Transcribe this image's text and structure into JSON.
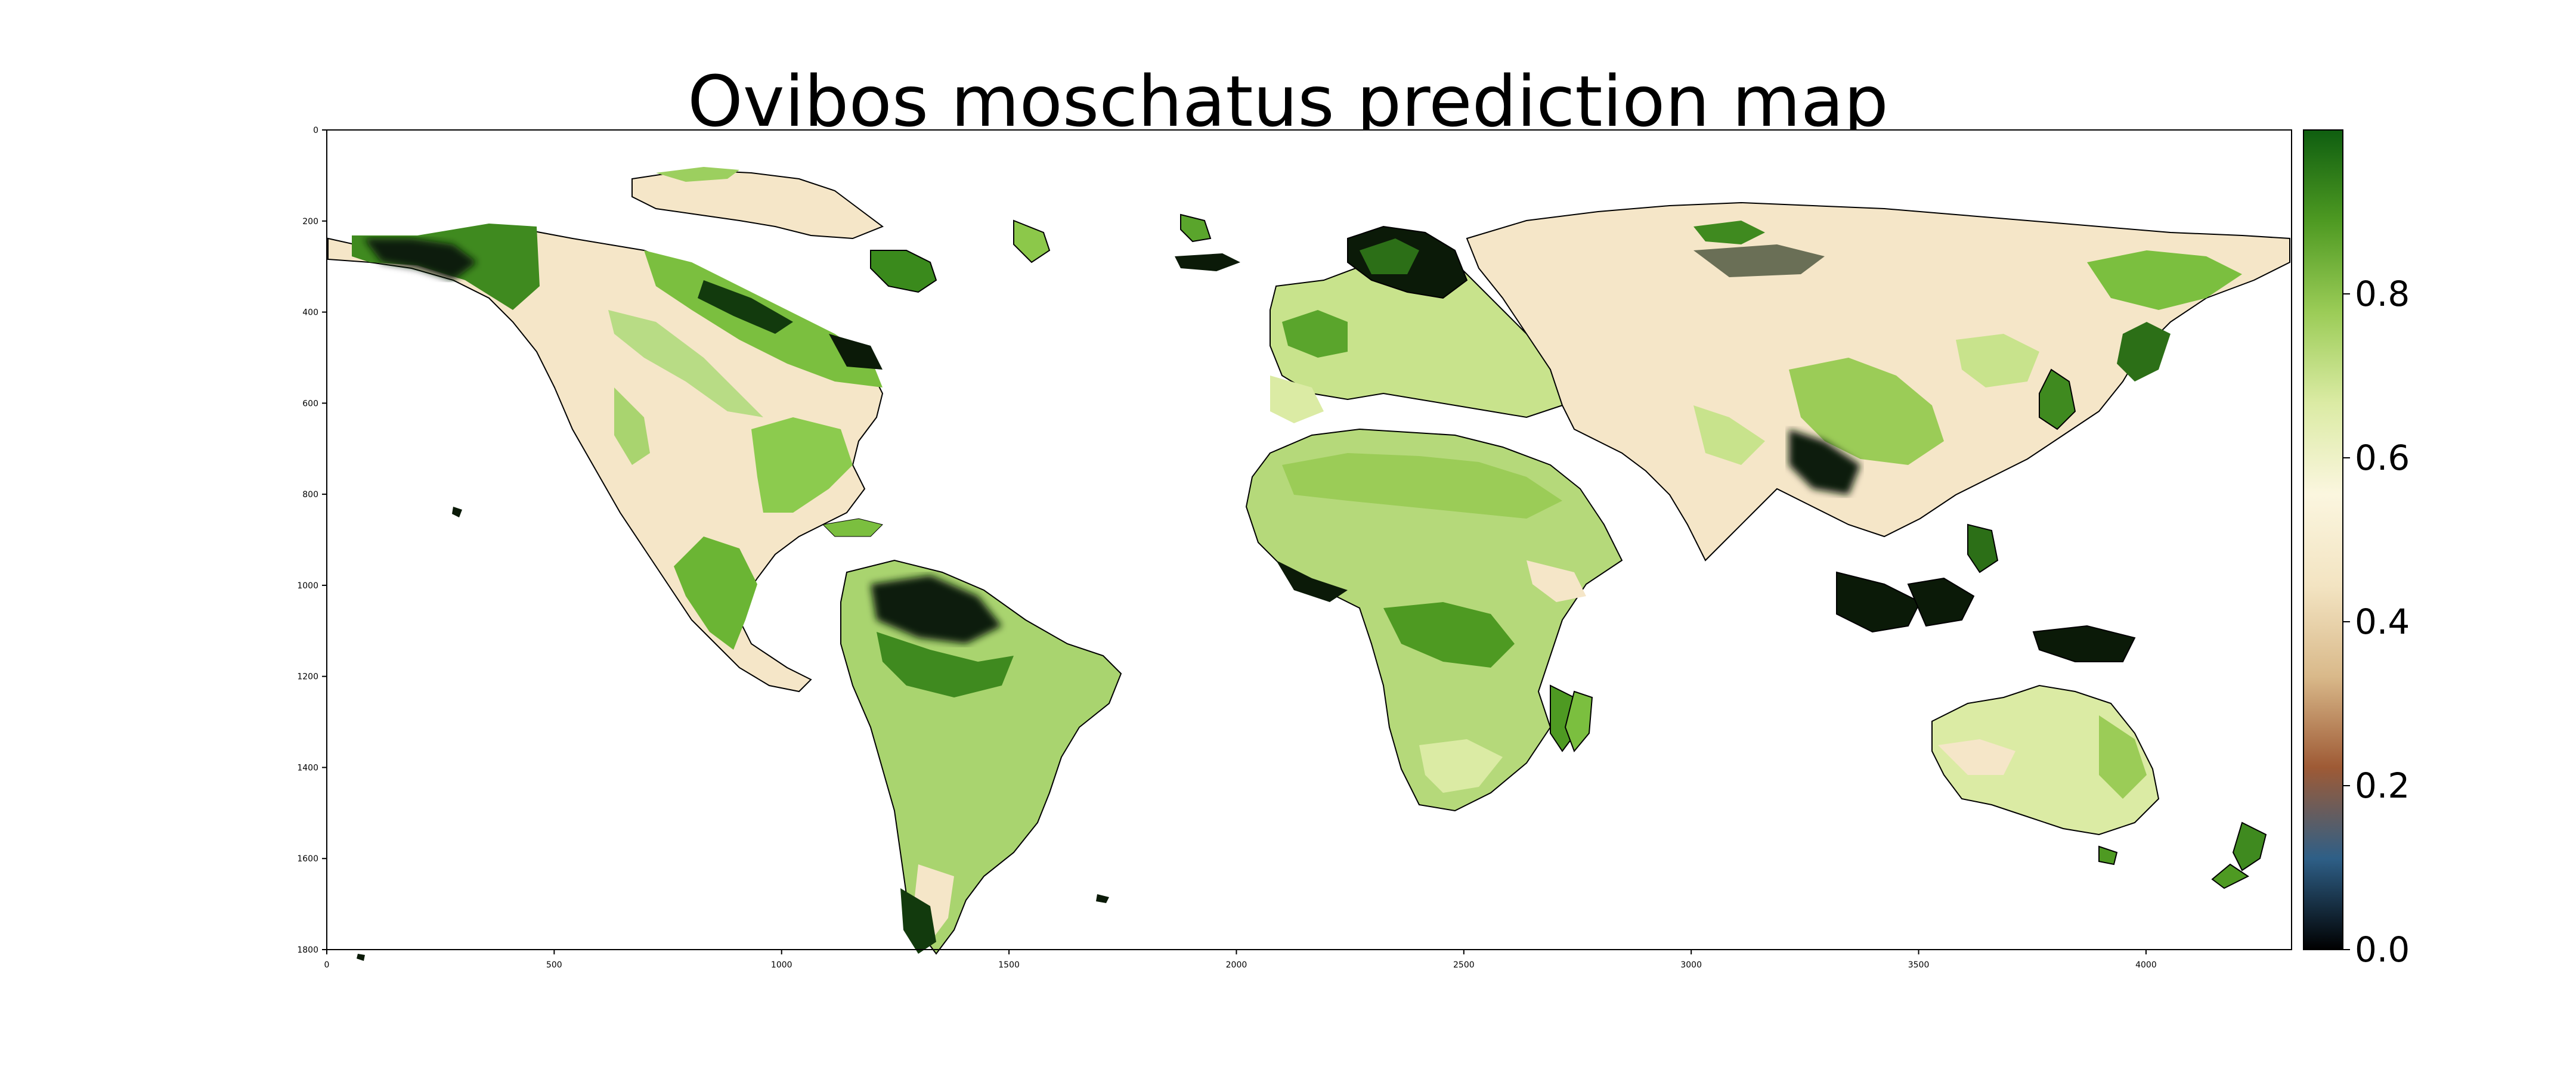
{
  "title": "Ovibos moschatus prediction map",
  "map": {
    "x_ticks": [
      "0",
      "500",
      "1000",
      "1500",
      "2000",
      "2500",
      "3000",
      "3500",
      "4000"
    ],
    "y_ticks": [
      "0",
      "200",
      "400",
      "600",
      "800",
      "1000",
      "1200",
      "1400",
      "1600",
      "1800"
    ],
    "x_range": [
      0,
      4320
    ],
    "y_range": [
      0,
      1800
    ]
  },
  "colorbar": {
    "ticks": [
      "0.0",
      "0.2",
      "0.4",
      "0.6",
      "0.8"
    ],
    "range": [
      0,
      1
    ],
    "colors": [
      "#000000",
      "#2e5f87",
      "#9e5a35",
      "#d9b98a",
      "#f3e4c2",
      "#fbf6df",
      "#dbeba4",
      "#9bcc57",
      "#4e9a22",
      "#0f5e10"
    ]
  },
  "legend_colors": {
    "land_low": "#f5e6c8",
    "land_mid": "#c8e38c",
    "land_high": "#5aa52c",
    "land_max": "#0b1a08",
    "ocean": "#ffffff"
  }
}
